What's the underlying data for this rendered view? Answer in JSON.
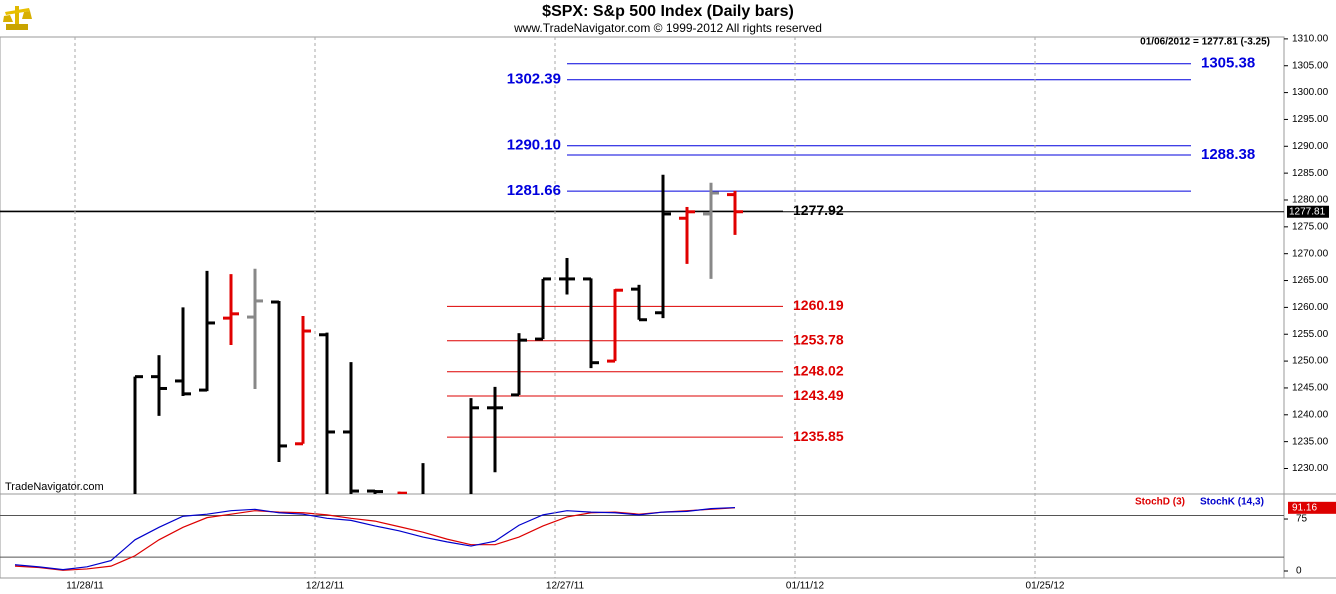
{
  "header": {
    "title": "$SPX:  S&p 500 Index  (Daily bars)",
    "subtitle": "www.TradeNavigator.com © 1999-2012 All rights reserved",
    "quote": "01/06/2012 = 1277.81 (-3.25)",
    "watermark": "TradeNavigator.com"
  },
  "chart_data": [
    {
      "type": "ohlc",
      "x": [
        0,
        1,
        2,
        3,
        4,
        5,
        6,
        7,
        8,
        9,
        10,
        11,
        12,
        14,
        15,
        16,
        17,
        18,
        19,
        20,
        21,
        22,
        23,
        24,
        25
      ],
      "open": [
        1220,
        1247.1,
        1246.3,
        1244.6,
        1258.0,
        1258.2,
        1261.0,
        1234.6,
        1254.9,
        1236.8,
        1225.8,
        1219,
        1224,
        1222,
        1241.3,
        1243.7,
        1254.1,
        1265.3,
        1265.3,
        1250.0,
        1263.4,
        1259.0,
        1276.6,
        1277.4,
        1281.0
      ],
      "high": [
        1247.1,
        1251.1,
        1260.0,
        1266.8,
        1266.2,
        1267.2,
        1261.2,
        1258.4,
        1255.3,
        1249.8,
        1226.0,
        1225.7,
        1231.0,
        1243.1,
        1245.2,
        1255.2,
        1265.3,
        1269.2,
        1265.4,
        1263.4,
        1264.2,
        1284.7,
        1278.7,
        1283.2,
        1281.7
      ],
      "low": [
        1215,
        1239.8,
        1243.5,
        1244.4,
        1253.0,
        1244.8,
        1231.2,
        1234.6,
        1218,
        1217,
        1214,
        1214,
        1215,
        1216,
        1229.3,
        1243.7,
        1254.1,
        1262.4,
        1248.7,
        1250.0,
        1257.7,
        1258.0,
        1268.1,
        1265.3,
        1273.5
      ],
      "close": [
        1247.1,
        1244.9,
        1243.9,
        1257.1,
        1258.8,
        1261.2,
        1234.2,
        1255.6,
        1236.8,
        1225.8,
        1225.7,
        1225.4,
        1218,
        1241.3,
        1241.3,
        1253.9,
        1265.3,
        1265.3,
        1249.7,
        1263.2,
        1257.7,
        1277.4,
        1277.8,
        1281.3,
        1277.81
      ],
      "colors": [
        "#000000",
        "#000000",
        "#000000",
        "#000000",
        "#e00000",
        "#888888",
        "#000000",
        "#e00000",
        "#000000",
        "#000000",
        "#000000",
        "#e00000",
        "#000000",
        "#000000",
        "#000000",
        "#000000",
        "#000000",
        "#000000",
        "#000000",
        "#e00000",
        "#000000",
        "#000000",
        "#e00000",
        "#888888",
        "#e00000"
      ],
      "xlim": [
        -5.625,
        47.875
      ],
      "xticks": [
        {
          "value": -2.5,
          "label": "11/28/11"
        },
        {
          "value": 7.5,
          "label": "12/12/11"
        },
        {
          "value": 17.5,
          "label": "12/27/11"
        },
        {
          "value": 27.5,
          "label": "01/11/12"
        },
        {
          "value": 37.5,
          "label": "01/25/12"
        }
      ],
      "ylim": [
        1225.25,
        1310.35
      ],
      "yticks": [
        {
          "value": 1230,
          "label": "1230.00"
        },
        {
          "value": 1235,
          "label": "1235.00"
        },
        {
          "value": 1240,
          "label": "1240.00"
        },
        {
          "value": 1245,
          "label": "1245.00"
        },
        {
          "value": 1250,
          "label": "1250.00"
        },
        {
          "value": 1255,
          "label": "1255.00"
        },
        {
          "value": 1260,
          "label": "1260.00"
        },
        {
          "value": 1265,
          "label": "1265.00"
        },
        {
          "value": 1270,
          "label": "1270.00"
        },
        {
          "value": 1275,
          "label": "1275.00"
        },
        {
          "value": 1280,
          "label": "1280.00"
        },
        {
          "value": 1285,
          "label": "1285.00"
        },
        {
          "value": 1290,
          "label": "1290.00"
        },
        {
          "value": 1295,
          "label": "1295.00"
        },
        {
          "value": 1300,
          "label": "1300.00"
        },
        {
          "value": 1305,
          "label": "1305.00"
        },
        {
          "value": 1310,
          "label": "1310.00"
        }
      ],
      "levels": [
        {
          "value": 1305.38,
          "label": "1305.38",
          "color": "#0000dd",
          "span": [
            18,
            44
          ],
          "label_side": "right"
        },
        {
          "value": 1302.39,
          "label": "1302.39",
          "color": "#0000dd",
          "span": [
            18,
            44
          ],
          "label_side": "left"
        },
        {
          "value": 1290.1,
          "label": "1290.10",
          "color": "#0000dd",
          "span": [
            18,
            44
          ],
          "label_side": "left"
        },
        {
          "value": 1288.38,
          "label": "1288.38",
          "color": "#0000dd",
          "span": [
            18,
            44
          ],
          "label_side": "right"
        },
        {
          "value": 1281.66,
          "label": "1281.66",
          "color": "#0000dd",
          "span": [
            18,
            44
          ],
          "label_side": "left"
        },
        {
          "value": 1277.92,
          "label": "1277.92",
          "color": "#000000",
          "span": [
            -5.625,
            27
          ],
          "label_side": "right"
        },
        {
          "value": 1260.19,
          "label": "1260.19",
          "color": "#dd0000",
          "span": [
            13,
            27
          ],
          "label_side": "right"
        },
        {
          "value": 1253.78,
          "label": "1253.78",
          "color": "#dd0000",
          "span": [
            13,
            27
          ],
          "label_side": "right"
        },
        {
          "value": 1248.02,
          "label": "1248.02",
          "color": "#dd0000",
          "span": [
            13,
            27
          ],
          "label_side": "right"
        },
        {
          "value": 1243.49,
          "label": "1243.49",
          "color": "#dd0000",
          "span": [
            13,
            27
          ],
          "label_side": "right"
        },
        {
          "value": 1235.85,
          "label": "1235.85",
          "color": "#dd0000",
          "span": [
            13,
            27
          ],
          "label_side": "right"
        }
      ],
      "last": {
        "value": 1277.81,
        "label": "1277.81",
        "color": "#000000"
      }
    },
    {
      "type": "line",
      "x": [
        -5,
        -4,
        -3,
        -2,
        -1,
        0,
        1,
        2,
        3,
        4,
        5,
        6,
        7,
        8,
        9,
        10,
        11,
        12,
        13,
        14,
        15,
        16,
        17,
        18,
        19,
        20,
        21,
        22,
        23,
        24,
        25
      ],
      "series": [
        {
          "name": "StochD (3)",
          "color": "#dd0000",
          "values": [
            7,
            5,
            1,
            3,
            7,
            22,
            45,
            63,
            77,
            82,
            87,
            85,
            84,
            81,
            76,
            72,
            64,
            56,
            46,
            38,
            38,
            49,
            65,
            78,
            84,
            85,
            82,
            85,
            87,
            89,
            91.16
          ]
        },
        {
          "name": "StochK (14,3)",
          "color": "#0000cc",
          "values": [
            9,
            6,
            2,
            6,
            15,
            45,
            63,
            79,
            82,
            87,
            89,
            84,
            82,
            76,
            73,
            65,
            58,
            49,
            42,
            36,
            43,
            66,
            81,
            87,
            85,
            84,
            81,
            85,
            86,
            90,
            91.5
          ]
        }
      ],
      "xlim": [
        -5.625,
        47.875
      ],
      "ylim": [
        -10.1,
        111.1
      ],
      "yticks": [
        0,
        75
      ],
      "levels": [
        20,
        80
      ],
      "last": {
        "value": 91.16,
        "label": "91.16",
        "color": "#dd0000"
      }
    }
  ]
}
